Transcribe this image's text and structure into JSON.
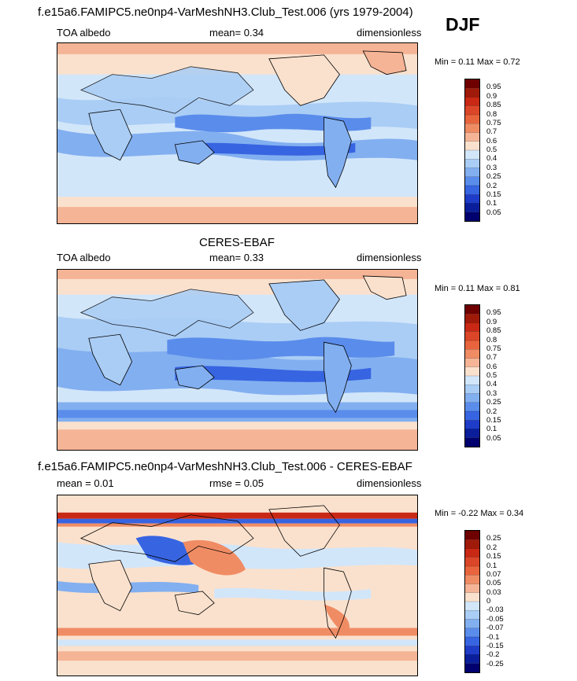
{
  "season": "DJF",
  "panels": [
    {
      "title": "f.e15a6.FAMIPC5.ne0np4-VarMeshNH3.Club_Test.006 (yrs 1979-2004)",
      "left": "TOA albedo",
      "center": "mean=  0.34",
      "right": "dimensionless",
      "minmax": "Min =  0.11 Max =  0.72",
      "levels": [
        "0.95",
        "0.9",
        "0.85",
        "0.8",
        "0.75",
        "0.7",
        "0.6",
        "0.5",
        "0.4",
        "0.3",
        "0.25",
        "0.2",
        "0.15",
        "0.1",
        "0.05"
      ]
    },
    {
      "title": "CERES-EBAF",
      "left": "TOA albedo",
      "center": "mean=  0.33",
      "right": "dimensionless",
      "minmax": "Min =  0.11 Max =  0.81",
      "levels": [
        "0.95",
        "0.9",
        "0.85",
        "0.8",
        "0.75",
        "0.7",
        "0.6",
        "0.5",
        "0.4",
        "0.3",
        "0.25",
        "0.2",
        "0.15",
        "0.1",
        "0.05"
      ]
    },
    {
      "title": "f.e15a6.FAMIPC5.ne0np4-VarMeshNH3.Club_Test.006 - CERES-EBAF",
      "left": "mean =  0.01",
      "center": "rmse =  0.05",
      "right": "dimensionless",
      "minmax": "Min = -0.22 Max =  0.34",
      "levels": [
        "0.25",
        "0.2",
        "0.15",
        "0.1",
        "0.07",
        "0.05",
        "0.03",
        "0",
        "-0.03",
        "-0.05",
        "-0.07",
        "-0.1",
        "-0.15",
        "-0.2",
        "-0.25"
      ]
    }
  ],
  "colorbar_colors": [
    "#6e0000",
    "#a01a0a",
    "#c82814",
    "#dc4628",
    "#e8643c",
    "#f08c64",
    "#f5b496",
    "#fae1cd",
    "#d2e6fa",
    "#aacdf5",
    "#82aff0",
    "#5a8ceb",
    "#3764e1",
    "#1e3cc8",
    "#0a1e9b",
    "#00006e"
  ],
  "map_colors": {
    "model": {
      "high": "#f5b496",
      "mid_high": "#fae1cd",
      "mid": "#d2e6fa",
      "low": "#aacdf5",
      "lower": "#82aff0",
      "lowest": "#5a8ceb",
      "deep": "#3764e1"
    },
    "obs": {
      "high": "#f5b496",
      "mid_high": "#fae1cd",
      "mid": "#d2e6fa",
      "low": "#aacdf5",
      "lower": "#82aff0",
      "lowest": "#5a8ceb",
      "deep": "#3764e1"
    },
    "diff": {
      "pos_hi": "#c82814",
      "pos": "#f08c64",
      "pos_lo": "#fae1cd",
      "neg_lo": "#d2e6fa",
      "neg": "#82aff0",
      "neg_hi": "#3764e1"
    }
  }
}
